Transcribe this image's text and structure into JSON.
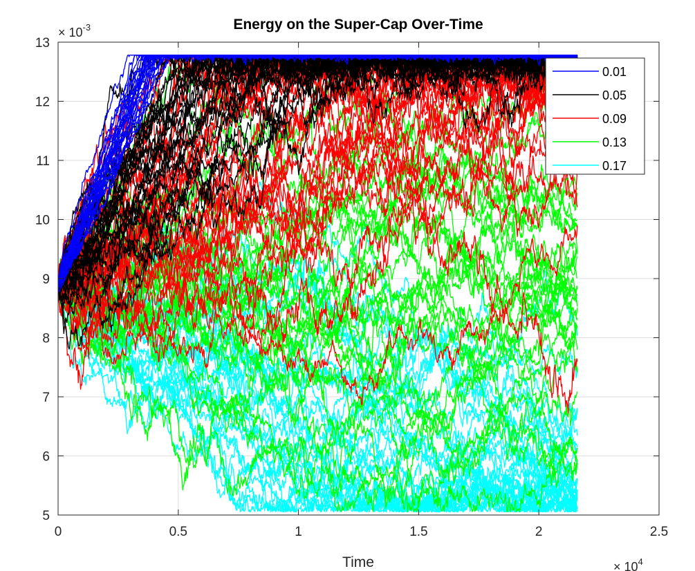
{
  "chart_data": {
    "type": "line",
    "title": "Energy on the Super-Cap Over-Time",
    "xlabel": "Time",
    "ylabel": "",
    "x_exponent_label": "× 10^4",
    "x_exponent_base": "× 10",
    "x_exponent_power": "4",
    "y_exponent_base": "× 10",
    "y_exponent_power": "-3",
    "xlim": [
      0,
      25000
    ],
    "ylim": [
      0.005,
      0.013
    ],
    "x_ticks": [
      0,
      5000,
      10000,
      15000,
      20000,
      25000
    ],
    "x_tick_labels": [
      "0",
      "0.5",
      "1",
      "1.5",
      "2",
      "2.5"
    ],
    "y_ticks": [
      0.005,
      0.006,
      0.007,
      0.008,
      0.009,
      0.01,
      0.011,
      0.012,
      0.013
    ],
    "y_tick_labels": [
      "5",
      "6",
      "7",
      "8",
      "9",
      "10",
      "11",
      "12",
      "13"
    ],
    "grid": true,
    "legend_position": "top-right",
    "start_value": 0.0089,
    "end_time": 21600,
    "upper_bound": 0.01278,
    "lower_bound": 0.00505,
    "runs_per_series": 30,
    "series": [
      {
        "name": "0.01",
        "color": "#0000ff",
        "trend": "rising",
        "reaches_upper_bound_at": [
          3800,
          4500
        ]
      },
      {
        "name": "0.05",
        "color": "#000000",
        "trend": "rising",
        "reaches_upper_bound_at": [
          5500,
          8800
        ]
      },
      {
        "name": "0.09",
        "color": "#ff0000",
        "trend": "rising",
        "reaches_upper_bound_at": [
          11500,
          21600
        ],
        "final_range": [
          0.0117,
          0.01278
        ]
      },
      {
        "name": "0.13",
        "color": "#00ff00",
        "trend": "flat",
        "final_range": [
          0.0064,
          0.0101
        ],
        "peak": 0.011
      },
      {
        "name": "0.17",
        "color": "#00ffff",
        "trend": "falling",
        "reaches_lower_bound_at": [
          9500,
          21600
        ],
        "final_range": [
          0.00505,
          0.0055
        ]
      }
    ]
  }
}
